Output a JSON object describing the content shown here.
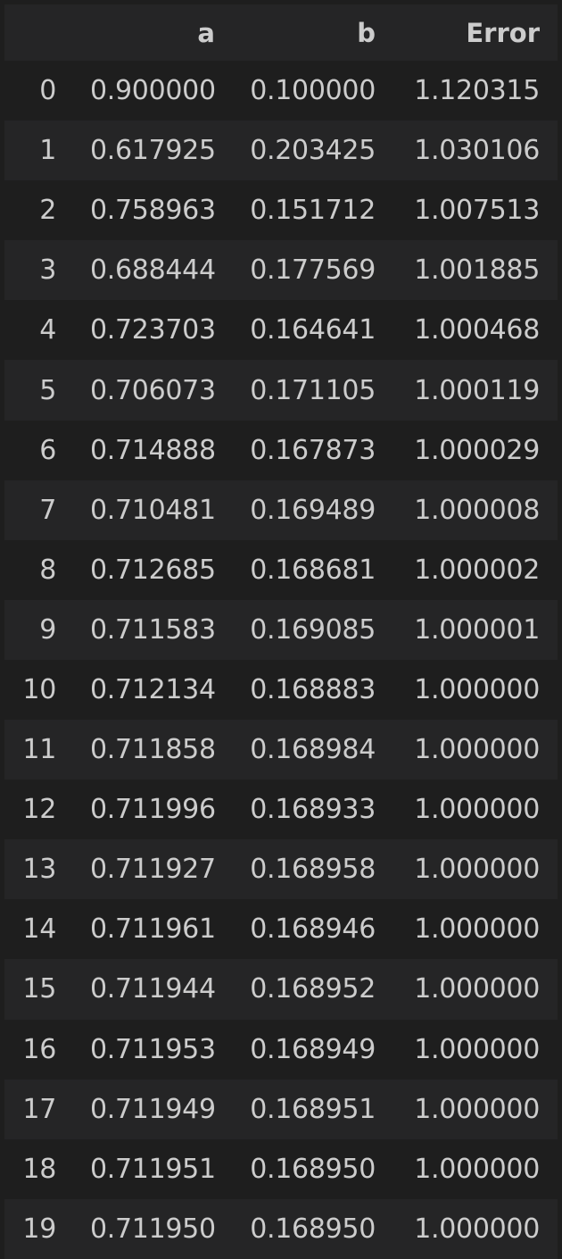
{
  "table": {
    "columns": [
      "",
      "a",
      "b",
      "Error"
    ],
    "rows": [
      {
        "index": "0",
        "a": "0.900000",
        "b": "0.100000",
        "error": "1.120315"
      },
      {
        "index": "1",
        "a": "0.617925",
        "b": "0.203425",
        "error": "1.030106"
      },
      {
        "index": "2",
        "a": "0.758963",
        "b": "0.151712",
        "error": "1.007513"
      },
      {
        "index": "3",
        "a": "0.688444",
        "b": "0.177569",
        "error": "1.001885"
      },
      {
        "index": "4",
        "a": "0.723703",
        "b": "0.164641",
        "error": "1.000468"
      },
      {
        "index": "5",
        "a": "0.706073",
        "b": "0.171105",
        "error": "1.000119"
      },
      {
        "index": "6",
        "a": "0.714888",
        "b": "0.167873",
        "error": "1.000029"
      },
      {
        "index": "7",
        "a": "0.710481",
        "b": "0.169489",
        "error": "1.000008"
      },
      {
        "index": "8",
        "a": "0.712685",
        "b": "0.168681",
        "error": "1.000002"
      },
      {
        "index": "9",
        "a": "0.711583",
        "b": "0.169085",
        "error": "1.000001"
      },
      {
        "index": "10",
        "a": "0.712134",
        "b": "0.168883",
        "error": "1.000000"
      },
      {
        "index": "11",
        "a": "0.711858",
        "b": "0.168984",
        "error": "1.000000"
      },
      {
        "index": "12",
        "a": "0.711996",
        "b": "0.168933",
        "error": "1.000000"
      },
      {
        "index": "13",
        "a": "0.711927",
        "b": "0.168958",
        "error": "1.000000"
      },
      {
        "index": "14",
        "a": "0.711961",
        "b": "0.168946",
        "error": "1.000000"
      },
      {
        "index": "15",
        "a": "0.711944",
        "b": "0.168952",
        "error": "1.000000"
      },
      {
        "index": "16",
        "a": "0.711953",
        "b": "0.168949",
        "error": "1.000000"
      },
      {
        "index": "17",
        "a": "0.711949",
        "b": "0.168951",
        "error": "1.000000"
      },
      {
        "index": "18",
        "a": "0.711951",
        "b": "0.168950",
        "error": "1.000000"
      },
      {
        "index": "19",
        "a": "0.711950",
        "b": "0.168950",
        "error": "1.000000"
      }
    ]
  },
  "colors": {
    "background": "#1e1e1e",
    "row_stripe": "#252526",
    "text": "#cccccc"
  }
}
